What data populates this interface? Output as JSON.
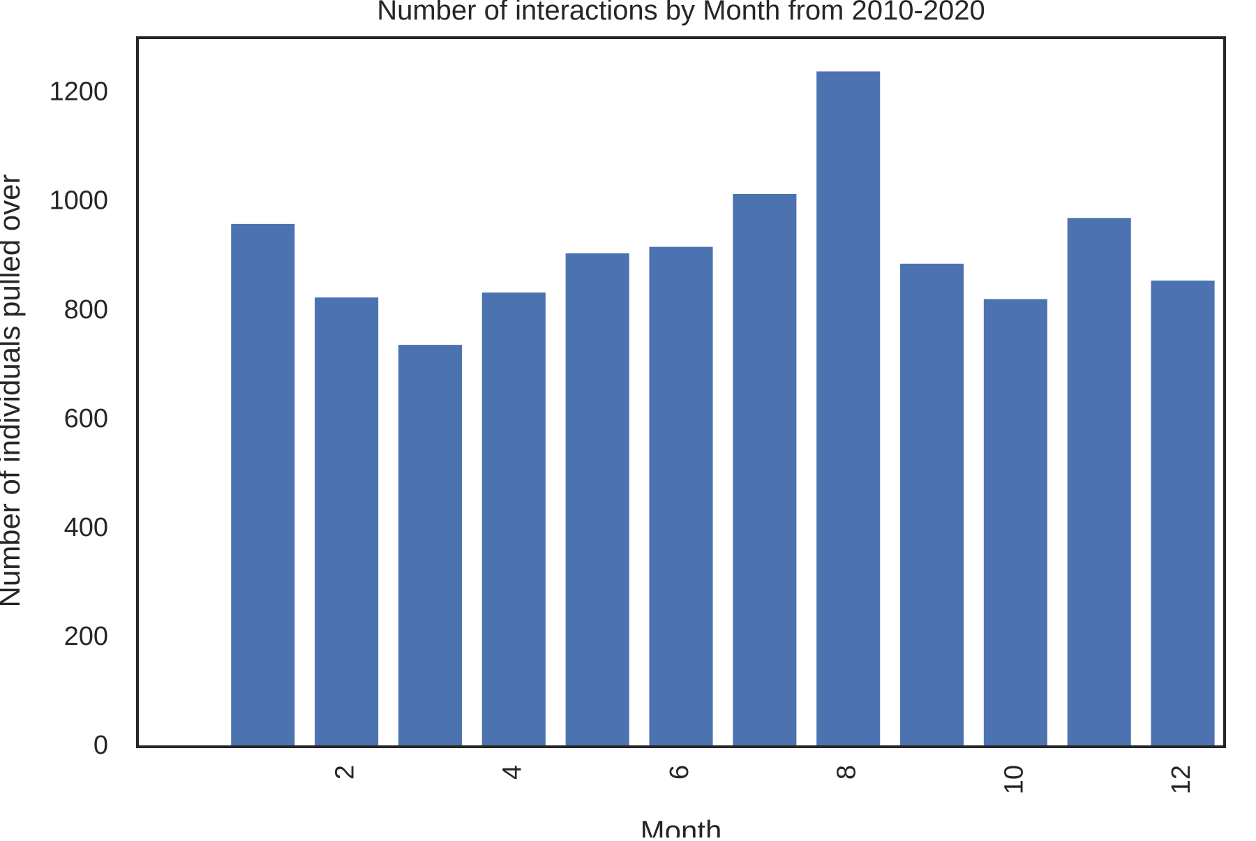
{
  "chart_data": {
    "type": "bar",
    "title": "Number of interactions by Month from 2010-2020",
    "xlabel": "Month",
    "ylabel": "Number of individuals pulled over",
    "categories": [
      1,
      2,
      3,
      4,
      5,
      6,
      7,
      8,
      9,
      10,
      11,
      12
    ],
    "values": [
      960,
      825,
      738,
      834,
      906,
      918,
      1015,
      1240,
      887,
      822,
      971,
      856
    ],
    "xticks": [
      2,
      4,
      6,
      8,
      10,
      12
    ],
    "xtick_labels": [
      "2",
      "4",
      "6",
      "8",
      "10",
      "12"
    ],
    "yticks": [
      0,
      200,
      400,
      600,
      800,
      1000,
      1200
    ],
    "ytick_labels": [
      "0",
      "200",
      "400",
      "600",
      "800",
      "1000",
      "1200"
    ],
    "xlim": [
      -0.5,
      12.5
    ],
    "ylim": [
      0,
      1302
    ],
    "grid": false,
    "legend": "none",
    "bar_color": "#4c72b0",
    "axis_color": "#262626"
  }
}
